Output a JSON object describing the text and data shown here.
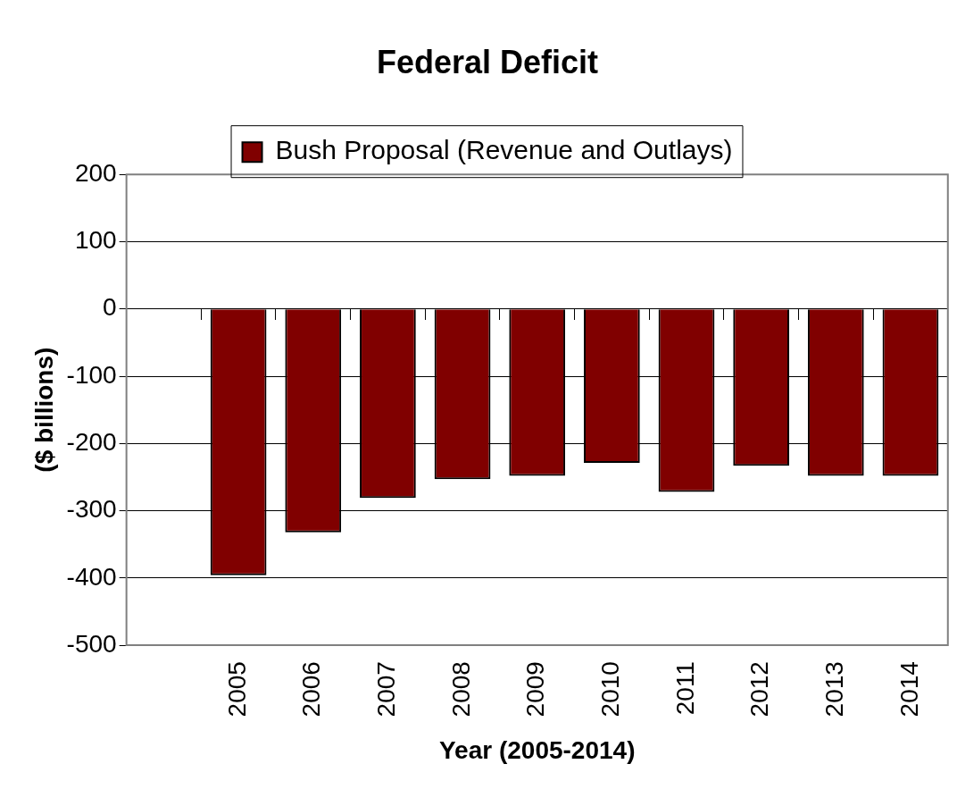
{
  "chart_data": {
    "type": "bar",
    "title": "Federal Deficit",
    "xlabel": "Year (2005-2014)",
    "ylabel": "($ billions)",
    "categories": [
      null,
      "2005",
      "2006",
      "2007",
      "2008",
      "2009",
      "2010",
      "2011",
      "2012",
      "2013",
      "2014"
    ],
    "series": [
      {
        "name": "Bush Proposal (Revenue and Outlays)",
        "color": "#800000",
        "values": [
          null,
          -396,
          -332,
          -281,
          -253,
          -248,
          -229,
          -272,
          -233,
          -248,
          -248
        ]
      }
    ],
    "ylim": [
      -500,
      200
    ],
    "yticks": [
      -500,
      -400,
      -300,
      -200,
      -100,
      0,
      100,
      200
    ],
    "grid": "y",
    "legend": "top"
  }
}
